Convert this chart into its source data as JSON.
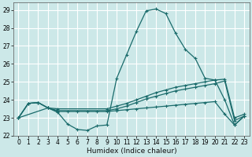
{
  "xlabel": "Humidex (Indice chaleur)",
  "xlim": [
    -0.5,
    23.5
  ],
  "ylim": [
    22,
    29.4
  ],
  "yticks": [
    22,
    23,
    24,
    25,
    26,
    27,
    28,
    29
  ],
  "xticks": [
    0,
    1,
    2,
    3,
    4,
    5,
    6,
    7,
    8,
    9,
    10,
    11,
    12,
    13,
    14,
    15,
    16,
    17,
    18,
    19,
    20,
    21,
    22,
    23
  ],
  "bg_color": "#cce8e8",
  "grid_color": "#ffffff",
  "line_color": "#1a6b6b",
  "line1_x": [
    0,
    1,
    2,
    3,
    4,
    5,
    6,
    7,
    8,
    9,
    10,
    11,
    12,
    13,
    14,
    15,
    16,
    17,
    18,
    19,
    20,
    21,
    22,
    23
  ],
  "line1_y": [
    23.0,
    23.8,
    23.85,
    23.55,
    23.3,
    22.65,
    22.35,
    22.3,
    22.55,
    22.6,
    25.2,
    26.5,
    27.8,
    28.95,
    29.05,
    28.8,
    27.7,
    26.8,
    26.3,
    25.2,
    25.1,
    24.0,
    22.6,
    23.1
  ],
  "line2_x": [
    0,
    1,
    2,
    3,
    4,
    9,
    10,
    11,
    12,
    13,
    14,
    15,
    16,
    17,
    18,
    19,
    20,
    21,
    22,
    23
  ],
  "line2_y": [
    23.0,
    23.8,
    23.85,
    23.55,
    23.5,
    23.5,
    23.65,
    23.8,
    24.0,
    24.2,
    24.4,
    24.55,
    24.7,
    24.8,
    24.9,
    25.0,
    25.1,
    25.15,
    23.0,
    23.2
  ],
  "line3_x": [
    0,
    1,
    2,
    3,
    4,
    9,
    10,
    11,
    12,
    13,
    14,
    15,
    16,
    17,
    18,
    19,
    20,
    21,
    22,
    23
  ],
  "line3_y": [
    23.0,
    23.8,
    23.85,
    23.55,
    23.4,
    23.4,
    23.5,
    23.65,
    23.85,
    24.05,
    24.2,
    24.35,
    24.5,
    24.6,
    24.7,
    24.8,
    24.9,
    25.05,
    22.85,
    23.1
  ],
  "line4_x": [
    0,
    3,
    4,
    5,
    6,
    7,
    8,
    9,
    10,
    11,
    12,
    13,
    14,
    15,
    16,
    17,
    18,
    19,
    20,
    21,
    22,
    23
  ],
  "line4_y": [
    23.0,
    23.55,
    23.35,
    23.35,
    23.35,
    23.35,
    23.35,
    23.35,
    23.4,
    23.45,
    23.5,
    23.55,
    23.6,
    23.65,
    23.7,
    23.75,
    23.8,
    23.85,
    23.9,
    23.2,
    22.6,
    23.1
  ]
}
